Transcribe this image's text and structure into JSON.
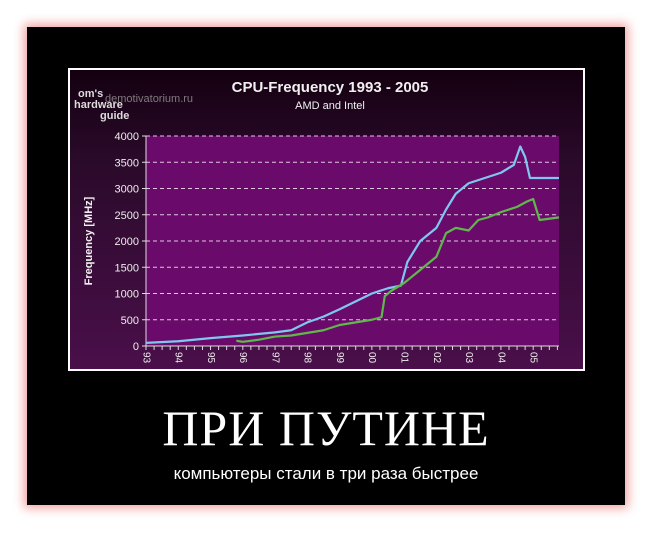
{
  "poster": {
    "headline": "ПРИ ПУТИНЕ",
    "caption": "компьютеры стали в три раза быстрее",
    "watermark": "demotivatorium.ru",
    "logo_text": "Tom's hardware guide"
  },
  "chart_data": {
    "type": "line",
    "title": "CPU-Frequency 1993 - 2005",
    "subtitle": "AMD and Intel",
    "ylabel": "Frequency [MHz]",
    "xlabel": "",
    "ylim": [
      0,
      4000
    ],
    "xlim": [
      1993,
      2005.8
    ],
    "yticks": [
      0,
      500,
      1000,
      1500,
      2000,
      2500,
      3000,
      3500,
      4000
    ],
    "xtick_labels": [
      "93",
      "94",
      "95",
      "96",
      "97",
      "98",
      "99",
      "00",
      "01",
      "02",
      "03",
      "04",
      "05"
    ],
    "grid": true,
    "colors": {
      "plot_bg": "#6a0a6a",
      "intel": "#7ec8f0",
      "amd": "#5fb84a"
    },
    "series": [
      {
        "key": "intel",
        "x": [
          1993,
          1994,
          1995,
          1996,
          1997,
          1997.5,
          1998,
          1998.5,
          1999,
          1999.5,
          2000,
          2000.5,
          2000.9,
          2001.1,
          2001.5,
          2002,
          2002.3,
          2002.6,
          2003,
          2003.5,
          2004,
          2004.4,
          2004.6,
          2004.75,
          2004.9,
          2005.2,
          2005.8
        ],
        "y": [
          60,
          90,
          150,
          200,
          260,
          300,
          450,
          560,
          700,
          850,
          1000,
          1100,
          1150,
          1600,
          2000,
          2250,
          2600,
          2900,
          3100,
          3200,
          3300,
          3450,
          3800,
          3600,
          3200,
          3200,
          3200
        ]
      },
      {
        "key": "amd",
        "x": [
          1995.8,
          1996,
          1996.5,
          1997,
          1997.5,
          1998,
          1998.5,
          1999,
          1999.5,
          2000,
          2000.3,
          2000.4,
          2000.6,
          2001,
          2001.3,
          2001.6,
          2002,
          2002.3,
          2002.6,
          2003,
          2003.3,
          2003.6,
          2004,
          2004.5,
          2004.8,
          2005,
          2005.2,
          2005.8
        ],
        "y": [
          100,
          80,
          120,
          180,
          200,
          250,
          300,
          400,
          450,
          500,
          550,
          950,
          1050,
          1200,
          1350,
          1500,
          1700,
          2150,
          2250,
          2200,
          2400,
          2450,
          2550,
          2650,
          2750,
          2800,
          2400,
          2450
        ]
      }
    ]
  }
}
